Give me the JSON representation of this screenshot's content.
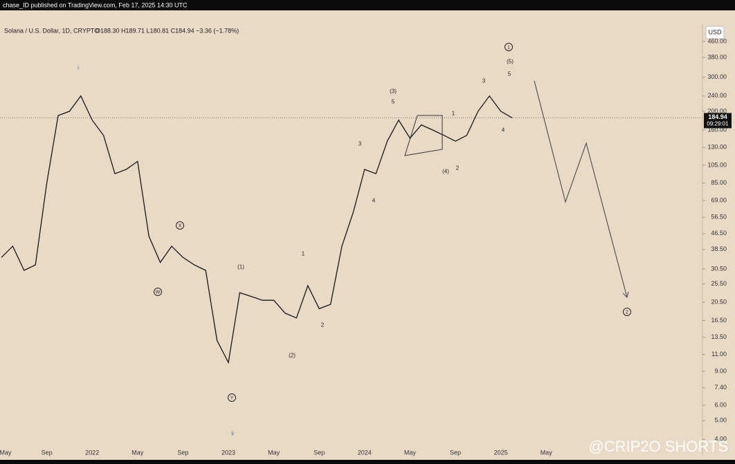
{
  "chart_data": {
    "type": "line",
    "publisher": "chase_ID published on TradingView.com, Feb 17, 2025 14:30 UTC",
    "title": "Solana / U.S. Dollar, 1D, CRYPTO",
    "ohlc": "O188.30 H189.71 L180.81 C184.94 −3.36 (−1.78%)",
    "currency": "USD",
    "last_price_label": "184.94",
    "countdown": "09:29:01",
    "watermark": "@CRIP2O SHORTS",
    "log_scale": true,
    "color": "#161616",
    "categories": [
      "May",
      null,
      null,
      null,
      "Sep",
      null,
      null,
      null,
      "2022",
      null,
      null,
      null,
      "May",
      null,
      null,
      null,
      "Sep",
      null,
      null,
      null,
      "2023",
      null,
      null,
      null,
      "May",
      null,
      null,
      null,
      "Sep",
      null,
      null,
      null,
      "2024",
      null,
      null,
      null,
      "May",
      null,
      null,
      null,
      "Sep",
      null,
      null,
      null,
      "2025",
      null,
      null,
      null,
      "May"
    ],
    "values": [
      35,
      40,
      30,
      32,
      85,
      190,
      200,
      240,
      180,
      150,
      95,
      100,
      110,
      45,
      33,
      40,
      35,
      32,
      30,
      13,
      10,
      23,
      22,
      21,
      21,
      18,
      17,
      25,
      19,
      20,
      40,
      60,
      100,
      95,
      140,
      180,
      145,
      170,
      160,
      150,
      140,
      150,
      200,
      240,
      200,
      184.94,
      null,
      null,
      null
    ],
    "ylim": [
      3.4,
      565
    ],
    "yticks": [
      {
        "value": 460,
        "label": "460.00"
      },
      {
        "value": 380,
        "label": "380.00"
      },
      {
        "value": 300,
        "label": "300.00"
      },
      {
        "value": 240,
        "label": "240.00"
      },
      {
        "value": 200,
        "label": "200.00"
      },
      {
        "value": 160,
        "label": "160.00"
      },
      {
        "value": 130,
        "label": "130.00"
      },
      {
        "value": 105,
        "label": "105.00"
      },
      {
        "value": 85,
        "label": "85.00"
      },
      {
        "value": 69,
        "label": "69.00"
      },
      {
        "value": 56.5,
        "label": "56.50"
      },
      {
        "value": 46.5,
        "label": "46.50"
      },
      {
        "value": 38.5,
        "label": "38.50"
      },
      {
        "value": 30.5,
        "label": "30.50"
      },
      {
        "value": 25.5,
        "label": "25.50"
      },
      {
        "value": 20.5,
        "label": "20.50"
      },
      {
        "value": 16.5,
        "label": "16.50"
      },
      {
        "value": 13.5,
        "label": "13.50"
      },
      {
        "value": 11,
        "label": "11.00"
      },
      {
        "value": 9,
        "label": "9.00"
      },
      {
        "value": 7.4,
        "label": "7.40"
      },
      {
        "value": 6,
        "label": "6.00"
      },
      {
        "value": 5,
        "label": "5.00"
      },
      {
        "value": 4,
        "label": "4.00"
      }
    ],
    "annotations": [
      "i",
      "1",
      "(5)",
      "5",
      "3",
      "(3)",
      "5",
      "1",
      "3",
      "4",
      "(4)",
      "2",
      "4",
      "X",
      "W",
      "(1)",
      "1",
      "2",
      "(2)",
      "Y",
      "ii",
      "2"
    ]
  }
}
